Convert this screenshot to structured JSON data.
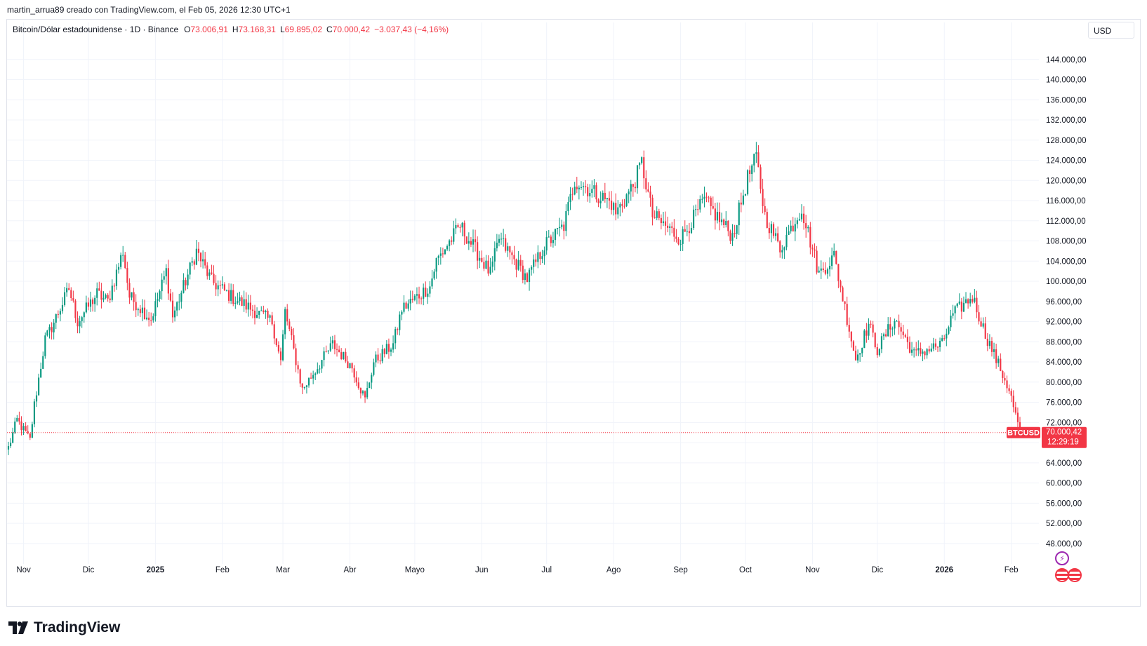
{
  "attribution": "martin_arrua89 creado con TradingView.com, el Feb 05, 2026 12:30 UTC+1",
  "legend": {
    "symbol": "Bitcoin/Dólar estadounidense · 1D · Binance",
    "o_label": "O",
    "o_value": "73.006,91",
    "h_label": "H",
    "h_value": "73.168,31",
    "l_label": "L",
    "l_value": "69.895,02",
    "c_label": "C",
    "c_value": "70.000,42",
    "change": "−3.037,43 (−4,16%)"
  },
  "currency_button": "USD",
  "price_tag": {
    "symbol": "BTCUSD",
    "price": "70.000,42",
    "countdown": "12:29:19"
  },
  "brand": "TradingView",
  "colors": {
    "up": "#089981",
    "down": "#f23645",
    "grid": "#f0f3fa",
    "text": "#131722"
  },
  "icons": [
    "lightning-icon",
    "us-flag-icon"
  ],
  "chart_data": {
    "type": "candlestick",
    "title": "Bitcoin/Dólar estadounidense · 1D · Binance",
    "x_ticks": [
      "Nov",
      "Dic",
      "2025",
      "Feb",
      "Mar",
      "Abr",
      "Mayo",
      "Jun",
      "Jul",
      "Ago",
      "Sep",
      "Oct",
      "Nov",
      "Dic",
      "2026",
      "Feb"
    ],
    "y_ticks": [
      48000,
      52000,
      56000,
      60000,
      64000,
      68000,
      72000,
      76000,
      80000,
      84000,
      88000,
      92000,
      96000,
      100000,
      104000,
      108000,
      112000,
      116000,
      120000,
      124000,
      128000,
      132000,
      136000,
      140000,
      144000
    ],
    "y_tick_labels": [
      "48.000,00",
      "52.000,00",
      "56.000,00",
      "60.000,00",
      "64.000,00",
      "",
      "72.000,00",
      "76.000,00",
      "80.000,00",
      "84.000,00",
      "88.000,00",
      "92.000,00",
      "96.000,00",
      "100.000,00",
      "104.000,00",
      "108.000,00",
      "112.000,00",
      "116.000,00",
      "120.000,00",
      "124.000,00",
      "128.000,00",
      "132.000,00",
      "136.000,00",
      "140.000,00",
      "144.000,00"
    ],
    "ylim": [
      44500,
      148000
    ],
    "last_price": 70000.42,
    "close_path": [
      [
        "2024-10-25",
        67000
      ],
      [
        "2024-10-29",
        72500
      ],
      [
        "2024-11-04",
        68500
      ],
      [
        "2024-11-06",
        75500
      ],
      [
        "2024-11-11",
        88500
      ],
      [
        "2024-11-13",
        90000
      ],
      [
        "2024-11-22",
        98500
      ],
      [
        "2024-11-26",
        92000
      ],
      [
        "2024-12-05",
        97500
      ],
      [
        "2024-12-10",
        96000
      ],
      [
        "2024-12-17",
        106000
      ],
      [
        "2024-12-20",
        97000
      ],
      [
        "2024-12-30",
        92500
      ],
      [
        "2025-01-06",
        102000
      ],
      [
        "2025-01-09",
        93000
      ],
      [
        "2025-01-20",
        106000
      ],
      [
        "2025-01-27",
        100000
      ],
      [
        "2025-02-05",
        97000
      ],
      [
        "2025-02-24",
        92000
      ],
      [
        "2025-02-28",
        84000
      ],
      [
        "2025-03-02",
        94000
      ],
      [
        "2025-03-10",
        78500
      ],
      [
        "2025-03-24",
        87500
      ],
      [
        "2025-04-02",
        83000
      ],
      [
        "2025-04-08",
        76500
      ],
      [
        "2025-04-12",
        84000
      ],
      [
        "2025-04-21",
        87500
      ],
      [
        "2025-04-25",
        94500
      ],
      [
        "2025-05-08",
        99000
      ],
      [
        "2025-05-11",
        104000
      ],
      [
        "2025-05-22",
        111000
      ],
      [
        "2025-06-05",
        101500
      ],
      [
        "2025-06-09",
        108500
      ],
      [
        "2025-06-22",
        100500
      ],
      [
        "2025-06-30",
        107000
      ],
      [
        "2025-07-09",
        111000
      ],
      [
        "2025-07-14",
        120000
      ],
      [
        "2025-07-31",
        115500
      ],
      [
        "2025-08-02",
        113500
      ],
      [
        "2025-08-10",
        119000
      ],
      [
        "2025-08-14",
        123500
      ],
      [
        "2025-08-19",
        113000
      ],
      [
        "2025-09-01",
        108500
      ],
      [
        "2025-09-12",
        116000
      ],
      [
        "2025-09-25",
        109000
      ],
      [
        "2025-10-02",
        120500
      ],
      [
        "2025-10-06",
        124500
      ],
      [
        "2025-10-10",
        113000
      ],
      [
        "2025-10-17",
        106500
      ],
      [
        "2025-10-27",
        114500
      ],
      [
        "2025-11-04",
        101500
      ],
      [
        "2025-11-11",
        105000
      ],
      [
        "2025-11-21",
        84500
      ],
      [
        "2025-11-27",
        91500
      ],
      [
        "2025-12-01",
        86500
      ],
      [
        "2025-12-09",
        92500
      ],
      [
        "2025-12-18",
        85500
      ],
      [
        "2025-12-31",
        87500
      ],
      [
        "2026-01-05",
        93500
      ],
      [
        "2026-01-14",
        97000
      ],
      [
        "2026-01-20",
        89500
      ],
      [
        "2026-01-31",
        78500
      ],
      [
        "2026-02-05",
        70000
      ]
    ]
  }
}
